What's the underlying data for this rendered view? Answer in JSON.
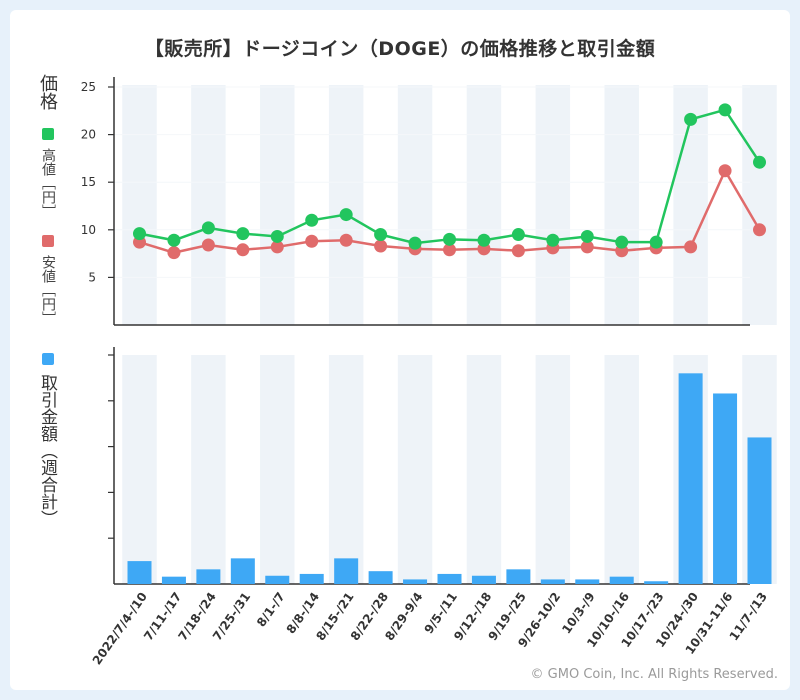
{
  "title": "【販売所】ドージコイン（DOGE）の価格推移と取引金額",
  "copyright": "© GMO Coin, Inc. All Rights Reserved.",
  "colors": {
    "high": "#22c55e",
    "low": "#e06b6b",
    "bar": "#3ea8f5",
    "stripe": "#eef3f8"
  },
  "price_axis_label": "価格",
  "legend": {
    "high": "高値［円］",
    "low": "安値［円］",
    "volume": "取引金額（週合計）"
  },
  "chart_data": [
    {
      "type": "line",
      "title": "価格",
      "categories": [
        "2022/7/4-/10",
        "7/11-/17",
        "7/18-/24",
        "7/25-/31",
        "8/1-/7",
        "8/8-/14",
        "8/15-/21",
        "8/22-/28",
        "8/29-9/4",
        "9/5-/11",
        "9/12-/18",
        "9/19-/25",
        "9/26-10/2",
        "10/3-/9",
        "10/10-/16",
        "10/17-/23",
        "10/24-/30",
        "10/31-11/6",
        "11/7-/13"
      ],
      "series": [
        {
          "name": "高値［円］",
          "values": [
            9.6,
            8.9,
            10.2,
            9.6,
            9.3,
            11.0,
            11.6,
            9.5,
            8.6,
            9.0,
            8.9,
            9.5,
            8.9,
            9.3,
            8.7,
            8.7,
            21.6,
            22.6,
            17.1
          ]
        },
        {
          "name": "安値［円］",
          "values": [
            8.7,
            7.6,
            8.4,
            7.9,
            8.2,
            8.8,
            8.9,
            8.3,
            8.0,
            7.9,
            8.0,
            7.8,
            8.1,
            8.2,
            7.8,
            8.1,
            8.2,
            16.2,
            10.0
          ]
        }
      ],
      "yticks": [
        5,
        10,
        15,
        20,
        25
      ],
      "ylim": [
        0,
        25
      ]
    },
    {
      "type": "bar",
      "title": "取引金額（週合計）",
      "categories": [
        "2022/7/4-/10",
        "7/11-/17",
        "7/18-/24",
        "7/25-/31",
        "8/1-/7",
        "8/8-/14",
        "8/15-/21",
        "8/22-/28",
        "8/29-9/4",
        "9/5-/11",
        "9/12-/18",
        "9/19-/25",
        "9/26-10/2",
        "10/3-/9",
        "10/10-/16",
        "10/17-/23",
        "10/24-/30",
        "10/31-11/6",
        "11/7-/13"
      ],
      "values": [
        25,
        8,
        16,
        28,
        9,
        11,
        28,
        14,
        5,
        11,
        9,
        16,
        5,
        5,
        8,
        3,
        230,
        208,
        160
      ],
      "ylim": [
        0,
        250
      ],
      "ytick_count": 5
    }
  ]
}
